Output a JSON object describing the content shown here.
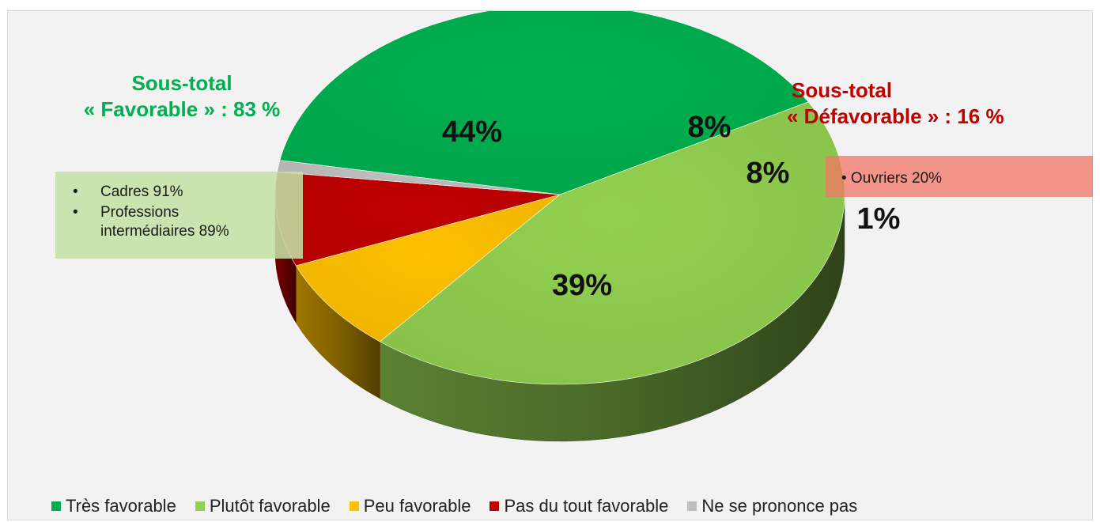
{
  "chart_data": {
    "type": "pie",
    "style": "3d",
    "slices": [
      {
        "category": "Très favorable",
        "value": 39,
        "label": "39%",
        "color": "#00b050"
      },
      {
        "category": "Plutôt favorable",
        "value": 44,
        "label": "44%",
        "color": "#92d050"
      },
      {
        "category": "Peu favorable",
        "value": 8,
        "label": "8%",
        "color": "#ffc000"
      },
      {
        "category": "Pas du tout favorable",
        "value": 8,
        "label": "8%",
        "color": "#c00000"
      },
      {
        "category": "Ne se prononce pas",
        "value": 1,
        "label": "1%",
        "color": "#bfbfbf"
      }
    ],
    "legend": {
      "position": "bottom",
      "entries": [
        {
          "label": "Très favorable",
          "color": "#00b050"
        },
        {
          "label": "Plutôt favorable",
          "color": "#92d050"
        },
        {
          "label": "Peu favorable",
          "color": "#ffc000"
        },
        {
          "label": "Pas du tout favorable",
          "color": "#c00000"
        },
        {
          "label": "Ne se prononce pas",
          "color": "#bfbfbf"
        }
      ]
    }
  },
  "annotations": {
    "favorable": {
      "line1": "Sous-total",
      "line2": "« Favorable » : 83 %",
      "color": "#00b050",
      "details": [
        "Cadres 91%",
        "Professions",
        "intermédiaires 89%"
      ]
    },
    "defavorable": {
      "line1": "Sous-total",
      "line2": "« Défavorable » : 16 %",
      "color": "#c00000",
      "details": [
        "• Ouvriers 20%"
      ]
    }
  }
}
